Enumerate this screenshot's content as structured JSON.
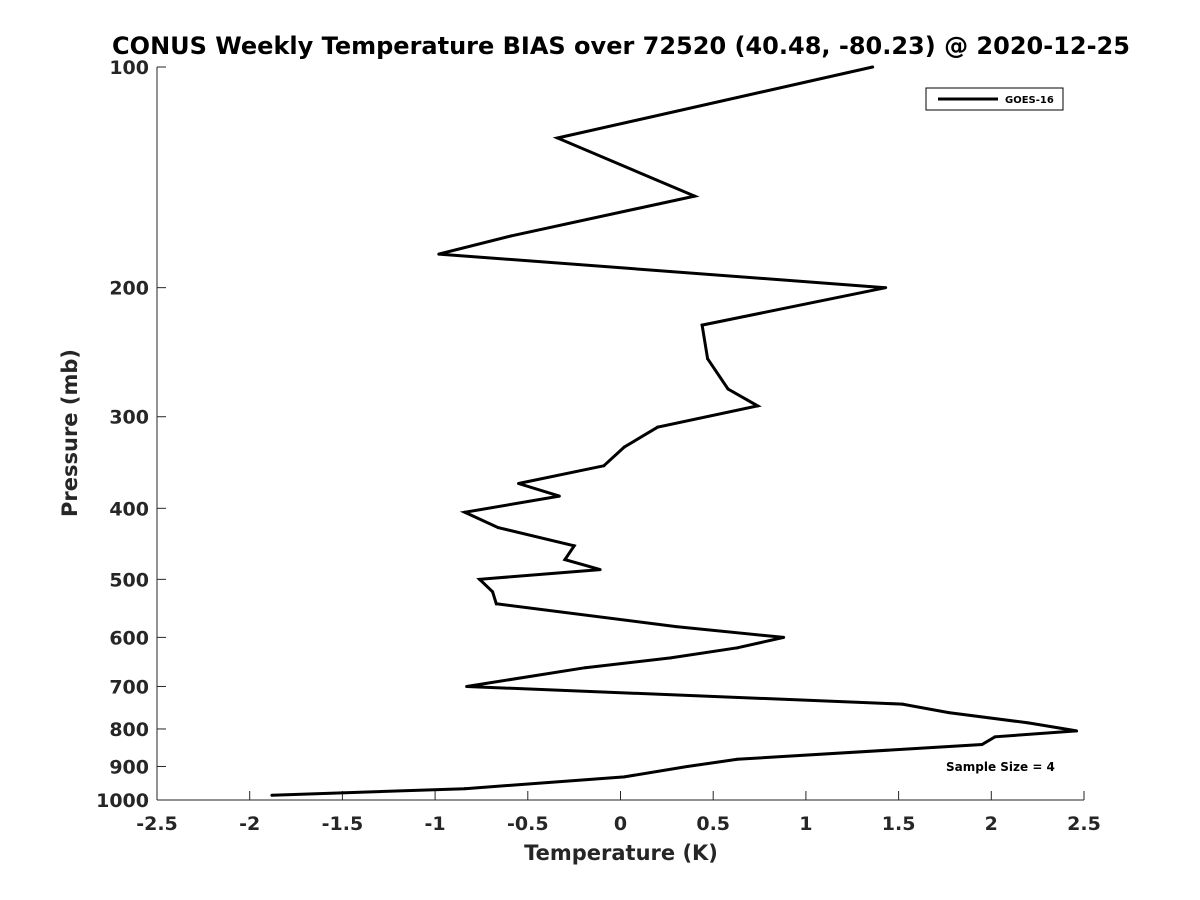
{
  "chart_data": {
    "type": "line",
    "title": "CONUS Weekly Temperature BIAS over 72520 (40.48, -80.23) @ 2020-12-25",
    "xlabel": "Temperature (K)",
    "ylabel": "Pressure (mb)",
    "xlim": [
      -2.5,
      2.5
    ],
    "ylim": [
      1000,
      100
    ],
    "yscale": "log",
    "x_ticks": [
      -2.5,
      -2,
      -1.5,
      -1,
      -0.5,
      0,
      0.5,
      1,
      1.5,
      2,
      2.5
    ],
    "x_tick_labels": [
      "-2.5",
      "-2",
      "-1.5",
      "-1",
      "-0.5",
      "0",
      "0.5",
      "1",
      "1.5",
      "2",
      "2.5"
    ],
    "y_ticks": [
      100,
      200,
      300,
      400,
      500,
      600,
      700,
      800,
      900,
      1000
    ],
    "y_tick_labels": [
      "100",
      "200",
      "300",
      "400",
      "500",
      "600",
      "700",
      "800",
      "900",
      "1000"
    ],
    "grid": false,
    "legend_position": "top-right",
    "annotations": [
      "Sample Size = 4"
    ],
    "series": [
      {
        "name": "GOES-16",
        "color": "#000000",
        "points": [
          {
            "x": 1.36,
            "y": 100
          },
          {
            "x": -0.34,
            "y": 125
          },
          {
            "x": 0.4,
            "y": 150
          },
          {
            "x": -0.59,
            "y": 170
          },
          {
            "x": -0.98,
            "y": 180
          },
          {
            "x": 1.43,
            "y": 200
          },
          {
            "x": 0.44,
            "y": 225
          },
          {
            "x": 0.47,
            "y": 250
          },
          {
            "x": 0.58,
            "y": 275
          },
          {
            "x": 0.74,
            "y": 290
          },
          {
            "x": 0.2,
            "y": 310
          },
          {
            "x": 0.02,
            "y": 330
          },
          {
            "x": -0.09,
            "y": 350
          },
          {
            "x": -0.55,
            "y": 370
          },
          {
            "x": -0.33,
            "y": 385
          },
          {
            "x": -0.84,
            "y": 405
          },
          {
            "x": -0.66,
            "y": 425
          },
          {
            "x": -0.25,
            "y": 450
          },
          {
            "x": -0.3,
            "y": 470
          },
          {
            "x": -0.11,
            "y": 485
          },
          {
            "x": -0.76,
            "y": 500
          },
          {
            "x": -0.69,
            "y": 520
          },
          {
            "x": -0.67,
            "y": 540
          },
          {
            "x": 0.3,
            "y": 580
          },
          {
            "x": 0.88,
            "y": 600
          },
          {
            "x": 0.63,
            "y": 620
          },
          {
            "x": 0.27,
            "y": 640
          },
          {
            "x": -0.19,
            "y": 660
          },
          {
            "x": -0.83,
            "y": 700
          },
          {
            "x": 1.52,
            "y": 740
          },
          {
            "x": 1.77,
            "y": 760
          },
          {
            "x": 2.2,
            "y": 785
          },
          {
            "x": 2.46,
            "y": 805
          },
          {
            "x": 2.02,
            "y": 820
          },
          {
            "x": 1.95,
            "y": 840
          },
          {
            "x": 0.63,
            "y": 880
          },
          {
            "x": 0.36,
            "y": 900
          },
          {
            "x": 0.02,
            "y": 930
          },
          {
            "x": -0.84,
            "y": 965
          },
          {
            "x": -1.88,
            "y": 985
          }
        ]
      }
    ]
  }
}
